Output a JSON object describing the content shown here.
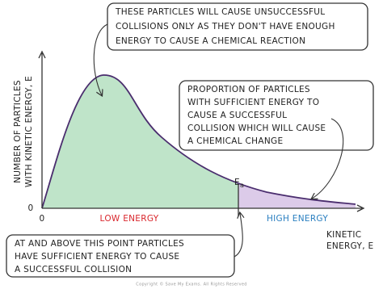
{
  "diagram": {
    "y_axis_label": [
      "NUMBER OF PARTICLES",
      "WITH KINETIC ENERGY, E"
    ],
    "x_axis_label": [
      "KINETIC",
      "ENERGY, E"
    ],
    "y_origin": "0",
    "x_origin": "0",
    "low_energy": "LOW ENERGY",
    "high_energy": "HIGH ENERGY",
    "activation_energy": {
      "symbol": "E",
      "subscript": "a"
    },
    "callouts": [
      {
        "lines": [
          "THESE PARTICLES WILL CAUSE UNSUCCESSFUL",
          "COLLISIONS ONLY AS THEY DON'T HAVE ENOUGH",
          "ENERGY TO CAUSE A CHEMICAL REACTION"
        ]
      },
      {
        "lines": [
          "PROPORTION OF PARTICLES",
          "WITH SUFFICIENT ENERGY TO",
          "CAUSE A SUCCESSFUL",
          "COLLISION WHICH WILL CAUSE",
          "A CHEMICAL CHANGE"
        ]
      },
      {
        "lines": [
          "AT AND ABOVE THIS POINT PARTICLES",
          "HAVE SUFFICIENT ENERGY TO CAUSE",
          "A SUCCESSFUL COLLISION"
        ]
      }
    ],
    "footer": "Copyright © Save My Exams. All Rights Reserved"
  }
}
